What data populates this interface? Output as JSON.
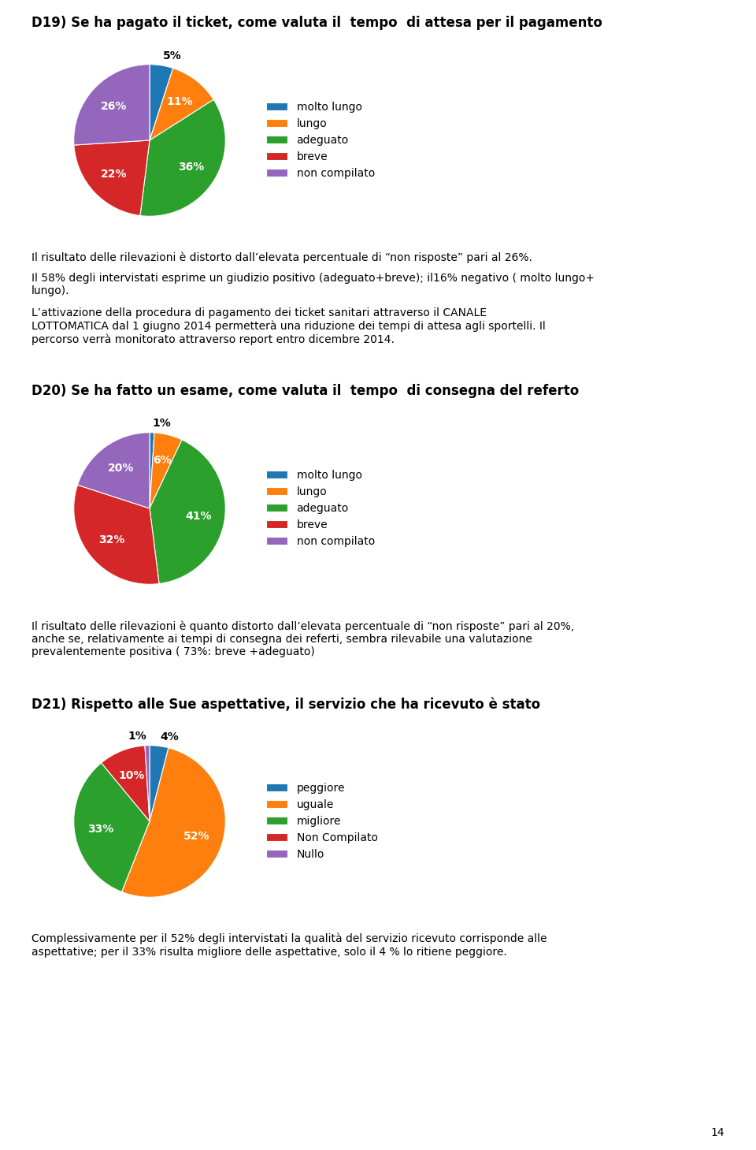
{
  "page_number": "14",
  "chart_data": [
    {
      "type": "pie",
      "title": "D19) Se ha pagato il ticket, come valuta il  tempo  di attesa per il pagamento",
      "categories": [
        "molto lungo",
        "lungo",
        "adeguato",
        "breve",
        "non compilato"
      ],
      "values": [
        5,
        11,
        36,
        22,
        26
      ],
      "data_labels": true,
      "value_labels": [
        "5%",
        "11%",
        "36%",
        "22%",
        "26%"
      ],
      "legend": "center left",
      "annotations": [
        "Il risultato delle rilevazioni è distorto dall’elevata percentuale di “non risposte” pari al 26%.",
        "Il 58% degli intervistati esprime un giudizio positivo (adeguato+breve); il16% negativo ( molto lungo+\nlungo).",
        "L’attivazione della procedura di pagamento dei ticket sanitari attraverso il CANALE\nLOTTOMATICA dal 1 giugno 2014 permetterà una riduzione dei tempi di attesa agli sportelli. Il\npercorso verrà monitorato attraverso report entro dicembre 2014."
      ]
    },
    {
      "type": "pie",
      "title": "D20) Se ha fatto un esame, come valuta il  tempo  di consegna del referto",
      "categories": [
        "molto lungo",
        "lungo",
        "adeguato",
        "breve",
        "non compilato"
      ],
      "values": [
        1,
        6,
        41,
        32,
        20
      ],
      "data_labels": true,
      "value_labels": [
        "1%",
        "6%",
        "41%",
        "32%",
        "20%"
      ],
      "legend": "center left",
      "annotations": [
        "Il risultato delle rilevazioni è quanto distorto dall’elevata percentuale di “non risposte” pari al 20%,\nanche se, relativamente ai tempi di consegna dei referti, sembra rilevabile una valutazione\nprevalentemente positiva ( 73%: breve +adeguato)"
      ]
    },
    {
      "type": "pie",
      "title": "D21) Rispetto alle Sue aspettative, il servizio che ha ricevuto è stato",
      "categories": [
        "peggiore",
        "uguale",
        "migliore",
        "Non Compilato",
        "Nullo"
      ],
      "values": [
        4,
        52,
        33,
        10,
        1
      ],
      "data_labels": true,
      "value_labels": [
        "4%",
        "52%",
        "33%",
        "10%",
        "1%"
      ],
      "legend": "center left",
      "annotations": [
        "Complessivamente per il 52% degli intervistati la qualità del servizio ricevuto corrisponde alle\naspettative; per il 33% risulta migliore delle aspettative, solo il 4 % lo ritiene peggiore."
      ]
    }
  ]
}
